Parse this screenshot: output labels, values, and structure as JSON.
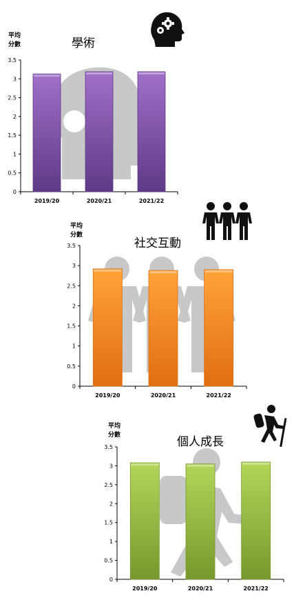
{
  "chart_data": [
    {
      "type": "bar",
      "title": "學術",
      "ylabel": "平均\n分數",
      "categories": [
        "2019/20",
        "2020/21",
        "2021/22"
      ],
      "values": [
        3.13,
        3.19,
        3.19
      ],
      "ylim": [
        0,
        3.5
      ],
      "yticks": [
        "0",
        "0.5",
        "1",
        "1.5",
        "2",
        "2.5",
        "3",
        "3.5"
      ],
      "bar_color_top": "#a070c8",
      "bar_color_bottom": "#5e3a86",
      "icon": "head-gears-icon"
    },
    {
      "type": "bar",
      "title": "社交互動",
      "ylabel": "平均\n分數",
      "categories": [
        "2019/20",
        "2020/21",
        "2021/22"
      ],
      "values": [
        2.92,
        2.88,
        2.9
      ],
      "ylim": [
        0,
        3.5
      ],
      "yticks": [
        "0",
        "0.5",
        "1",
        "1.5",
        "2",
        "2.5",
        "3",
        "3.5"
      ],
      "bar_color_top": "#ffa33a",
      "bar_color_bottom": "#e06e12",
      "icon": "group-people-icon"
    },
    {
      "type": "bar",
      "title": "個人成長",
      "ylabel": "平均\n分數",
      "categories": [
        "2019/20",
        "2020/21",
        "2021/22"
      ],
      "values": [
        3.08,
        3.05,
        3.1
      ],
      "ylim": [
        0,
        3.5
      ],
      "yticks": [
        "0",
        "0.5",
        "1",
        "1.5",
        "2",
        "2.5",
        "3",
        "3.5"
      ],
      "bar_color_top": "#b2d65a",
      "bar_color_bottom": "#78982e",
      "icon": "hiker-icon"
    }
  ]
}
